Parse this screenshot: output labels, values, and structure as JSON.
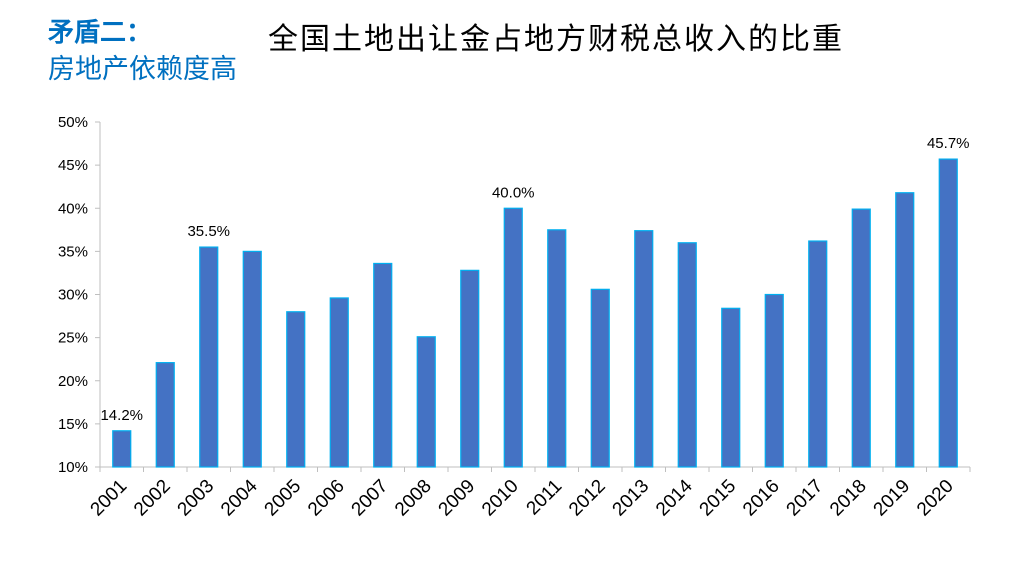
{
  "heading": {
    "line1": "矛盾二：",
    "line2": "房地产依赖度高"
  },
  "colors": {
    "heading": "#0070c0",
    "bar_fill": "#4472c4",
    "bar_stroke": "#00b0f0",
    "axis": "#bfbfbf"
  },
  "chart_data": {
    "type": "bar",
    "title": "全国土地出让金占地方财税总收入的比重",
    "xlabel": "",
    "ylabel": "",
    "ylim": [
      10,
      50
    ],
    "ytick_step": 5,
    "ytick_labels": [
      "10%",
      "15%",
      "20%",
      "25%",
      "30%",
      "35%",
      "40%",
      "45%",
      "50%"
    ],
    "grid": false,
    "categories": [
      "2001",
      "2002",
      "2003",
      "2004",
      "2005",
      "2006",
      "2007",
      "2008",
      "2009",
      "2010",
      "2011",
      "2012",
      "2013",
      "2014",
      "2015",
      "2016",
      "2017",
      "2018",
      "2019",
      "2020"
    ],
    "values": [
      14.2,
      22.1,
      35.5,
      35.0,
      28.0,
      29.6,
      33.6,
      25.1,
      32.8,
      40.0,
      37.5,
      30.6,
      37.4,
      36.0,
      28.4,
      30.0,
      36.2,
      39.9,
      41.8,
      45.7
    ],
    "data_labels": [
      {
        "index": 0,
        "text": "14.2%"
      },
      {
        "index": 2,
        "text": "35.5%"
      },
      {
        "index": 9,
        "text": "40.0%"
      },
      {
        "index": 19,
        "text": "45.7%"
      }
    ]
  }
}
